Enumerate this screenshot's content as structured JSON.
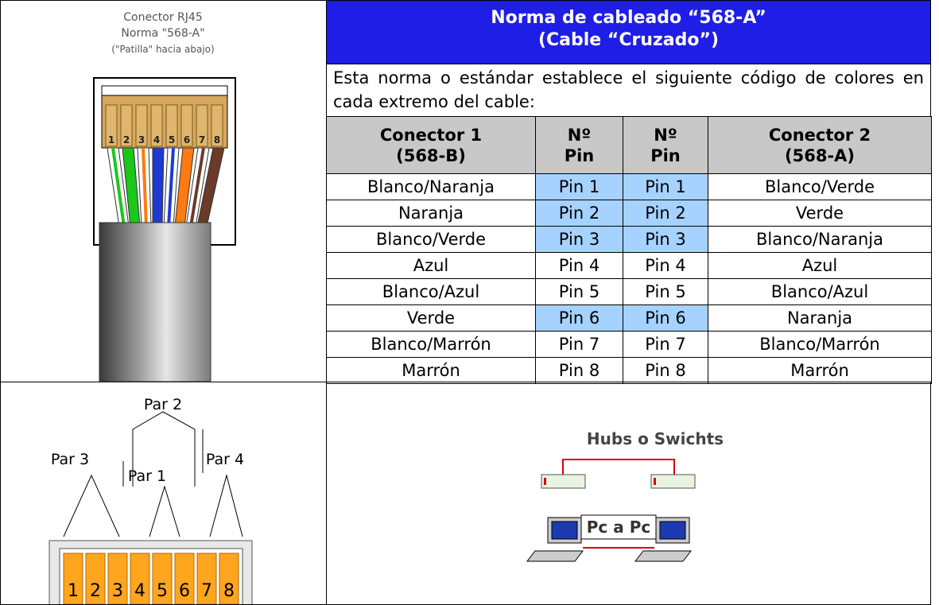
{
  "connector_image": {
    "caption": [
      "Conector RJ45",
      "Norma \"568-A\"",
      "(\"Patilla\" hacia abajo)"
    ],
    "pins": [
      "1",
      "2",
      "3",
      "4",
      "5",
      "6",
      "7",
      "8"
    ]
  },
  "header": {
    "title": "Norma de cableado “568-A”",
    "subtitle": "(Cable “Cruzado”)",
    "description": "Esta norma o estándar establece el siguiente código de colores en cada extremo del cable:"
  },
  "table": {
    "columns": [
      [
        "Conector 1",
        "(568-B)"
      ],
      [
        "Nº",
        "Pin"
      ],
      [
        "Nº",
        "Pin"
      ],
      [
        "Conector 2",
        "(568-A)"
      ]
    ],
    "rows": [
      [
        "Blanco/Naranja",
        "Pin 1",
        "Pin 1",
        "Blanco/Verde"
      ],
      [
        "Naranja",
        "Pin 2",
        "Pin 2",
        "Verde"
      ],
      [
        "Blanco/Verde",
        "Pin 3",
        "Pin 3",
        "Blanco/Naranja"
      ],
      [
        "Azul",
        "Pin 4",
        "Pin 4",
        "Azul"
      ],
      [
        "Blanco/Azul",
        "Pin 5",
        "Pin 5",
        "Blanco/Azul"
      ],
      [
        "Verde",
        "Pin 6",
        "Pin 6",
        "Naranja"
      ],
      [
        "Blanco/Marrón",
        "Pin 7",
        "Pin 7",
        "Blanco/Marrón"
      ],
      [
        "Marrón",
        "Pin 8",
        "Pin 8",
        "Marrón"
      ]
    ]
  },
  "pairs_image": {
    "labels": [
      "Par 2",
      "Par 3",
      "Par 1",
      "Par 4"
    ],
    "pins": [
      "1",
      "2",
      "3",
      "4",
      "5",
      "6",
      "7",
      "8"
    ]
  },
  "diagram": {
    "hubs_label": "Hubs o Swichts",
    "pc_label": "Pc a Pc"
  }
}
